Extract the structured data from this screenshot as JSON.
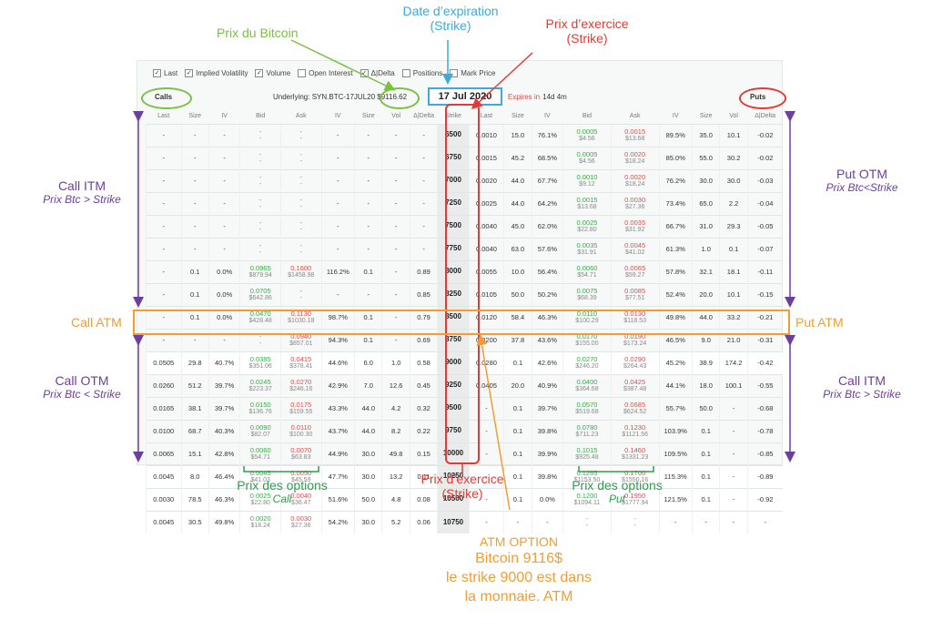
{
  "toolbar": {
    "items": [
      {
        "label": "Last",
        "checked": true
      },
      {
        "label": "Implied Volatility",
        "checked": true
      },
      {
        "label": "Volume",
        "checked": true
      },
      {
        "label": "Open Interest",
        "checked": false
      },
      {
        "label": "Δ|Delta",
        "checked": true
      },
      {
        "label": "Positions",
        "checked": false
      },
      {
        "label": "Mark Price",
        "checked": false
      }
    ]
  },
  "header": {
    "calls": "Calls",
    "underlying": "Underlying: SYN.BTC-17JUL20 $9116.62",
    "expiry": "17 Jul 2020",
    "expires_label": "Expires in",
    "expires_value": "14d 4m",
    "puts": "Puts"
  },
  "columns": [
    "Last",
    "Size",
    "IV",
    "Bid",
    "Ask",
    "IV",
    "Size",
    "Vol",
    "Δ|Delta",
    "Strike",
    "Last",
    "Size",
    "IV",
    "Bid",
    "Ask",
    "IV",
    "Size",
    "Vol",
    "Δ|Delta"
  ],
  "rows": [
    {
      "call": [
        "-",
        "-",
        "-",
        [
          "-",
          "-"
        ],
        [
          "-",
          "-"
        ],
        "-",
        "-",
        "-",
        "-"
      ],
      "strike": "6500",
      "put": [
        "0.0010",
        "15.0",
        "76.1%",
        [
          "0.0005",
          "$4.56"
        ],
        [
          "0.0015",
          "$13.68"
        ],
        "89.5%",
        "35.0",
        "10.1",
        "-0.02"
      ]
    },
    {
      "call": [
        "-",
        "-",
        "-",
        [
          "-",
          "-"
        ],
        [
          "-",
          "-"
        ],
        "-",
        "-",
        "-",
        "-"
      ],
      "strike": "6750",
      "put": [
        "0.0015",
        "45.2",
        "68.5%",
        [
          "0.0005",
          "$4.56"
        ],
        [
          "0.0020",
          "$18.24"
        ],
        "85.0%",
        "55.0",
        "30.2",
        "-0.02"
      ]
    },
    {
      "call": [
        "-",
        "-",
        "-",
        [
          "-",
          "-"
        ],
        [
          "-",
          "-"
        ],
        "-",
        "-",
        "-",
        "-"
      ],
      "strike": "7000",
      "put": [
        "0.0020",
        "44.0",
        "67.7%",
        [
          "0.0010",
          "$9.12"
        ],
        [
          "0.0020",
          "$18.24"
        ],
        "76.2%",
        "30.0",
        "30.0",
        "-0.03"
      ]
    },
    {
      "call": [
        "-",
        "-",
        "-",
        [
          "-",
          "-"
        ],
        [
          "-",
          "-"
        ],
        "-",
        "-",
        "-",
        "-"
      ],
      "strike": "7250",
      "put": [
        "0.0025",
        "44.0",
        "64.2%",
        [
          "0.0015",
          "$13.68"
        ],
        [
          "0.0030",
          "$27.36"
        ],
        "73.4%",
        "65.0",
        "2.2",
        "-0.04"
      ]
    },
    {
      "call": [
        "-",
        "-",
        "-",
        [
          "-",
          "-"
        ],
        [
          "-",
          "-"
        ],
        "-",
        "-",
        "-",
        "-"
      ],
      "strike": "7500",
      "put": [
        "0.0040",
        "45.0",
        "62.0%",
        [
          "0.0025",
          "$22.80"
        ],
        [
          "0.0035",
          "$31.92"
        ],
        "66.7%",
        "31.0",
        "29.3",
        "-0.05"
      ]
    },
    {
      "call": [
        "-",
        "-",
        "-",
        [
          "-",
          "-"
        ],
        [
          "-",
          "-"
        ],
        "-",
        "-",
        "-",
        "-"
      ],
      "strike": "7750",
      "put": [
        "0.0040",
        "63.0",
        "57.6%",
        [
          "0.0035",
          "$31.91"
        ],
        [
          "0.0045",
          "$41.02"
        ],
        "61.3%",
        "1.0",
        "0.1",
        "-0.07"
      ]
    },
    {
      "call": [
        "-",
        "0.1",
        "0.0%",
        [
          "0.0965",
          "$879.94"
        ],
        [
          "0.1600",
          "$1458.98"
        ],
        "116.2%",
        "0.1",
        "-",
        "0.89"
      ],
      "strike": "8000",
      "put": [
        "0.0055",
        "10.0",
        "56.4%",
        [
          "0.0060",
          "$54.71"
        ],
        [
          "0.0065",
          "$59.27"
        ],
        "57.8%",
        "32.1",
        "18.1",
        "-0.11"
      ]
    },
    {
      "call": [
        "-",
        "0.1",
        "0.0%",
        [
          "0.0705",
          "$642.86"
        ],
        [
          "-",
          "-"
        ],
        "-",
        "-",
        "-",
        "0.85"
      ],
      "strike": "8250",
      "put": [
        "0.0105",
        "50.0",
        "50.2%",
        [
          "0.0075",
          "$68.39"
        ],
        [
          "0.0085",
          "$77.51"
        ],
        "52.4%",
        "20.0",
        "10.1",
        "-0.15"
      ]
    },
    {
      "call": [
        "-",
        "0.1",
        "0.0%",
        [
          "0.0470",
          "$428.48"
        ],
        [
          "0.1130",
          "$1030.18"
        ],
        "98.7%",
        "0.1",
        "-",
        "0.79"
      ],
      "strike": "8500",
      "put": [
        "0.0120",
        "58.4",
        "46.3%",
        [
          "0.0110",
          "$100.29"
        ],
        [
          "0.0130",
          "$118.53"
        ],
        "49.8%",
        "44.0",
        "33.2",
        "-0.21"
      ]
    },
    {
      "call": [
        "-",
        "-",
        "-",
        [
          "-",
          "-"
        ],
        [
          "0.0940",
          "$857.01"
        ],
        "94.3%",
        "0.1",
        "-",
        "0.69"
      ],
      "strike": "8750",
      "put": [
        "0.0200",
        "37.8",
        "43.6%",
        [
          "0.0170",
          "$155.00"
        ],
        [
          "0.0190",
          "$173.24"
        ],
        "46.5%",
        "9.0",
        "21.0",
        "-0.31"
      ]
    },
    {
      "call": [
        "0.0505",
        "29.8",
        "40.7%",
        [
          "0.0385",
          "$351.06"
        ],
        [
          "0.0415",
          "$378.41"
        ],
        "44.6%",
        "6.0",
        "1.0",
        "0.58"
      ],
      "strike": "9000",
      "put": [
        "0.0280",
        "0.1",
        "42.6%",
        [
          "0.0270",
          "$246.20"
        ],
        [
          "0.0290",
          "$264.43"
        ],
        "45.2%",
        "38.9",
        "174.2",
        "-0.42"
      ],
      "atm": true
    },
    {
      "call": [
        "0.0260",
        "51.2",
        "39.7%",
        [
          "0.0245",
          "$223.37"
        ],
        [
          "0.0270",
          "$246.16"
        ],
        "42.9%",
        "7.0",
        "12.6",
        "0.45"
      ],
      "strike": "9250",
      "put": [
        "0.0405",
        "20.0",
        "40.9%",
        [
          "0.0400",
          "$364.68"
        ],
        [
          "0.0425",
          "$387.48"
        ],
        "44.1%",
        "18.0",
        "100.1",
        "-0.55"
      ]
    },
    {
      "call": [
        "0.0165",
        "38.1",
        "39.7%",
        [
          "0.0150",
          "$136.76"
        ],
        [
          "0.0175",
          "$159.55"
        ],
        "43.3%",
        "44.0",
        "4.2",
        "0.32"
      ],
      "strike": "9500",
      "put": [
        "-",
        "0.1",
        "39.7%",
        [
          "0.0570",
          "$519.68"
        ],
        [
          "0.0685",
          "$624.52"
        ],
        "55.7%",
        "50.0",
        "-",
        "-0.68"
      ]
    },
    {
      "call": [
        "0.0100",
        "68.7",
        "40.3%",
        [
          "0.0090",
          "$82.07"
        ],
        [
          "0.0110",
          "$100.30"
        ],
        "43.7%",
        "44.0",
        "8.2",
        "0.22"
      ],
      "strike": "9750",
      "put": [
        "-",
        "0.1",
        "39.8%",
        [
          "0.0780",
          "$711.23"
        ],
        [
          "0.1230",
          "$1121.56"
        ],
        "103.9%",
        "0.1",
        "-",
        "-0.78"
      ]
    },
    {
      "call": [
        "0.0065",
        "15.1",
        "42.8%",
        [
          "0.0060",
          "$54.71"
        ],
        [
          "0.0070",
          "$63.83"
        ],
        "44.9%",
        "30.0",
        "49.8",
        "0.15"
      ],
      "strike": "10000",
      "put": [
        "-",
        "0.1",
        "39.9%",
        [
          "0.1015",
          "$925.48"
        ],
        [
          "0.1460",
          "$1331.23"
        ],
        "109.5%",
        "0.1",
        "-",
        "-0.85"
      ]
    },
    {
      "call": [
        "0.0045",
        "8.0",
        "46.4%",
        [
          "0.0045",
          "$41.03"
        ],
        [
          "0.0050",
          "$45.59"
        ],
        "47.7%",
        "30.0",
        "13.2",
        "0.11"
      ],
      "strike": "10250",
      "put": [
        "-",
        "0.1",
        "39.8%",
        [
          "0.1265",
          "$1153.50"
        ],
        [
          "0.1700",
          "$1550.16"
        ],
        "115.3%",
        "0.1",
        "-",
        "-0.89"
      ]
    },
    {
      "call": [
        "0.0030",
        "78.5",
        "46.3%",
        [
          "0.0025",
          "$22.80"
        ],
        [
          "0.0040",
          "$36.47"
        ],
        "51.6%",
        "50.0",
        "4.8",
        "0.08"
      ],
      "strike": "10500",
      "put": [
        "-",
        "0.1",
        "0.0%",
        [
          "0.1200",
          "$1094.11"
        ],
        [
          "0.1950",
          "$1777.94"
        ],
        "121.5%",
        "0.1",
        "-",
        "-0.92"
      ]
    },
    {
      "call": [
        "0.0045",
        "30.5",
        "49.8%",
        [
          "0.0020",
          "$18.24"
        ],
        [
          "0.0030",
          "$27.36"
        ],
        "54.2%",
        "30.0",
        "5.2",
        "0.06"
      ],
      "strike": "10750",
      "put": [
        "-",
        "-",
        "-",
        [
          "-",
          "-"
        ],
        [
          "-",
          "-"
        ],
        "-",
        "-",
        "-",
        "-"
      ]
    }
  ],
  "annotations": {
    "prix_bitcoin": "Prix du Bitcoin",
    "date_expiration_1": "Date d’expiration",
    "date_expiration_2": "(Strike)",
    "prix_exercice_top_1": "Prix d’exercice",
    "prix_exercice_top_2": "(Strike)",
    "call_itm": "Call ITM",
    "call_itm_sub": "Prix Btc > Strike",
    "put_otm": "Put OTM",
    "put_otm_sub": "Prix Btc<Strike",
    "call_atm": "Call ATM",
    "put_atm": "Put ATM",
    "call_otm": "Call OTM",
    "call_otm_sub": "Prix Btc < Strike",
    "call_itm_right": "Call ITM",
    "call_itm_right_sub": "Prix Btc > Strike",
    "prix_options_call_1": "Prix des options",
    "prix_options_call_2": "Call",
    "prix_exercice_bottom_1": "Prix d’exercice",
    "prix_exercice_bottom_2": "(Strike)",
    "prix_options_put_1": "Prix des options",
    "prix_options_put_2": "Put",
    "atm_option_title": "ATM OPTION",
    "atm_line_1": "Bitcoin 9116$",
    "atm_line_2": "le strike 9000 est dans",
    "atm_line_3": "la monnaie. ATM"
  },
  "colors": {
    "purple": "#6b3fa0",
    "orange": "#f39c33",
    "green": "#7bc043",
    "blue": "#3fa9dc",
    "red": "#e53935",
    "bid_green": "#3aa84a",
    "ask_red": "#e04b4b"
  }
}
